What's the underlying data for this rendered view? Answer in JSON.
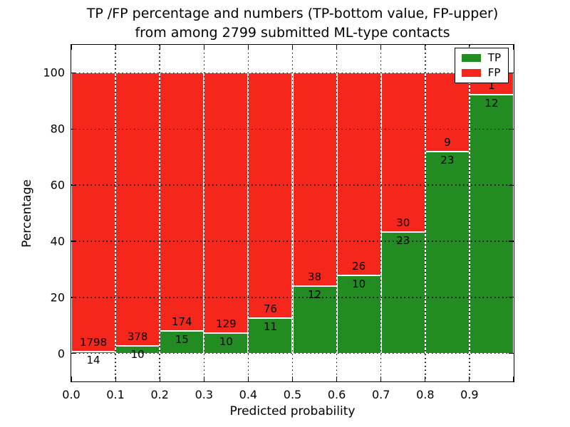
{
  "title": {
    "line1": "TP /FP percentage and numbers (TP-bottom value, FP-upper)",
    "line2": "from among 2799 submitted ML-type contacts"
  },
  "chart_data": {
    "type": "bar",
    "variant": "stacked-percentage-histogram",
    "title": "TP /FP percentage and numbers (TP-bottom value, FP-upper) from among 2799 submitted ML-type contacts",
    "xlabel": "Predicted probability",
    "ylabel": "Percentage",
    "xlim": [
      0.0,
      1.0
    ],
    "ylim": [
      -10,
      110
    ],
    "bin_edges": [
      0.0,
      0.1,
      0.2,
      0.3,
      0.4,
      0.5,
      0.6,
      0.7,
      0.8,
      0.9,
      1.0
    ],
    "categories": [
      "0.0-0.1",
      "0.1-0.2",
      "0.2-0.3",
      "0.3-0.4",
      "0.4-0.5",
      "0.5-0.6",
      "0.6-0.7",
      "0.7-0.8",
      "0.8-0.9",
      "0.9-1.0"
    ],
    "series": [
      {
        "name": "TP",
        "color": "#228b22",
        "counts": [
          14,
          10,
          15,
          10,
          11,
          12,
          10,
          23,
          23,
          12
        ]
      },
      {
        "name": "FP",
        "color": "#f5261c",
        "counts": [
          1798,
          378,
          174,
          129,
          76,
          38,
          26,
          30,
          9,
          1
        ]
      }
    ],
    "tp_percent": [
      0.8,
      2.6,
      7.9,
      7.2,
      12.6,
      24.0,
      27.8,
      43.4,
      71.9,
      92.3
    ],
    "total_contacts": 2799,
    "xticks": [
      "0.0",
      "0.1",
      "0.2",
      "0.3",
      "0.4",
      "0.5",
      "0.6",
      "0.7",
      "0.8",
      "0.9"
    ],
    "yticks": [
      0,
      20,
      40,
      60,
      80,
      100
    ],
    "grid": "dotted",
    "legend": {
      "position": "upper right"
    }
  }
}
